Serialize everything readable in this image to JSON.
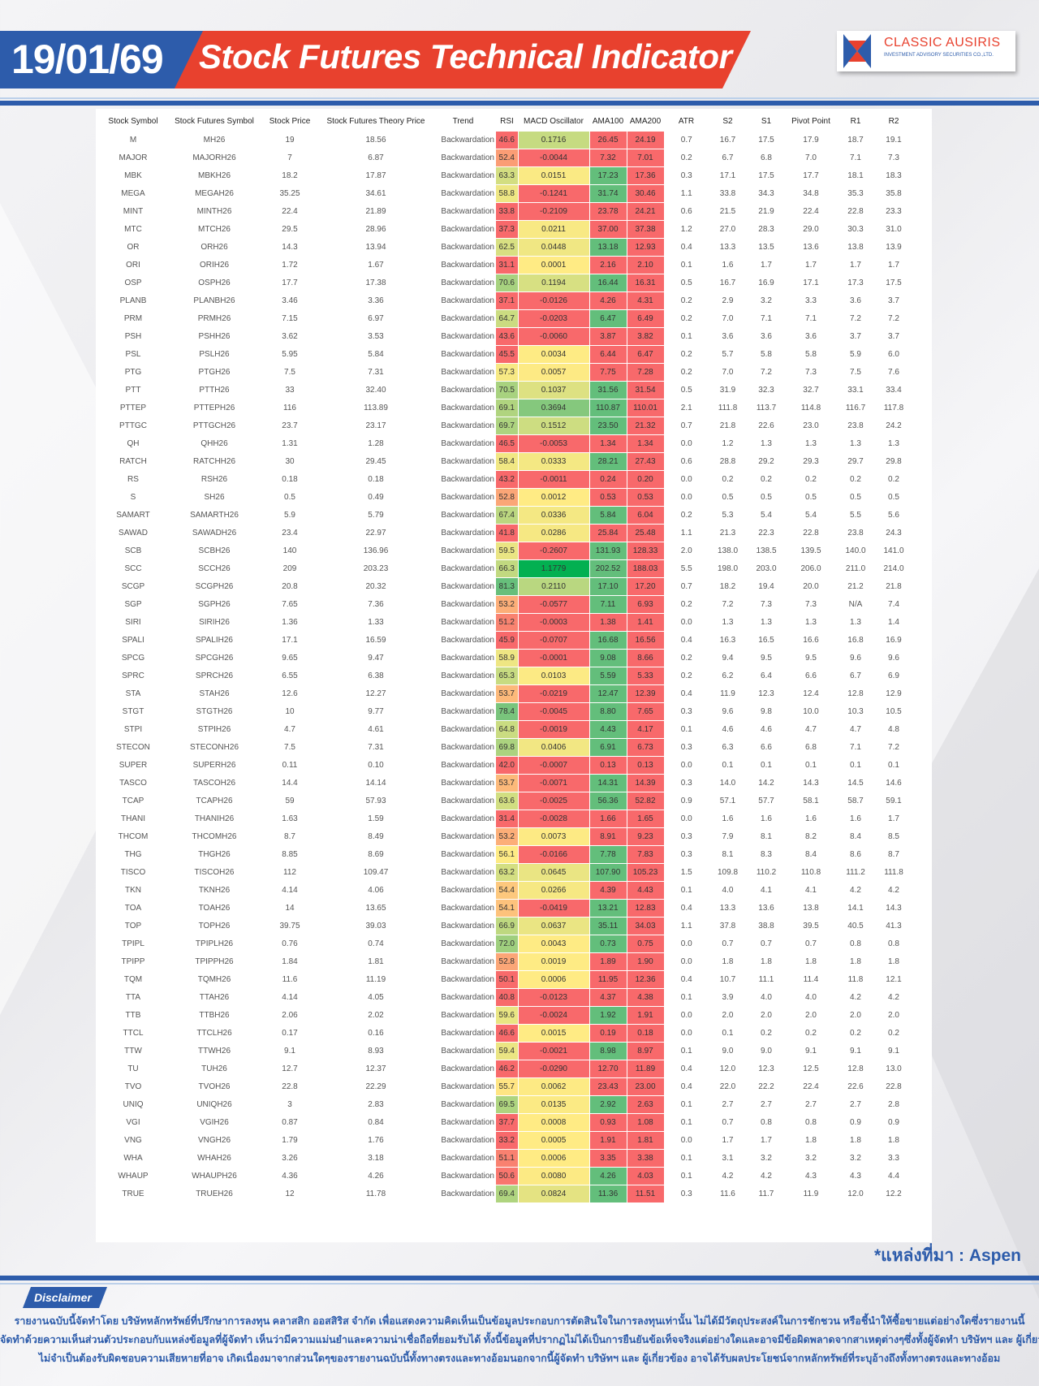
{
  "header": {
    "date": "19/01/69",
    "title": "Stock Futures Technical Indicator",
    "logo_name": "CLASSIC AUSIRIS",
    "logo_sub": "INVESTMENT ADVISORY SECURITIES CO.,LTD.",
    "colors": {
      "blue": "#2d5cab",
      "red": "#e8412e"
    }
  },
  "table": {
    "columns": [
      "Stock Symbol",
      "Stock Futures Symbol",
      "Stock Price",
      "Stock Futures Theory Price",
      "Trend",
      "RSI",
      "MACD Oscillator",
      "AMA100",
      "AMA200",
      "ATR",
      "S2",
      "S1",
      "Pivot Point",
      "R1",
      "R2"
    ],
    "rows": [
      [
        "M",
        "MH26",
        "19",
        "18.56",
        "Backwardation",
        "46.6",
        "0.1716",
        "26.45",
        "24.19",
        "0.7",
        "16.7",
        "17.5",
        "17.9",
        "18.7",
        "19.1"
      ],
      [
        "MAJOR",
        "MAJORH26",
        "7",
        "6.87",
        "Backwardation",
        "52.4",
        "-0.0044",
        "7.32",
        "7.01",
        "0.2",
        "6.7",
        "6.8",
        "7.0",
        "7.1",
        "7.3"
      ],
      [
        "MBK",
        "MBKH26",
        "18.2",
        "17.87",
        "Backwardation",
        "63.3",
        "0.0151",
        "17.23",
        "17.36",
        "0.3",
        "17.1",
        "17.5",
        "17.7",
        "18.1",
        "18.3"
      ],
      [
        "MEGA",
        "MEGAH26",
        "35.25",
        "34.61",
        "Backwardation",
        "58.8",
        "-0.1241",
        "31.74",
        "30.46",
        "1.1",
        "33.8",
        "34.3",
        "34.8",
        "35.3",
        "35.8"
      ],
      [
        "MINT",
        "MINTH26",
        "22.4",
        "21.89",
        "Backwardation",
        "33.8",
        "-0.2109",
        "23.78",
        "24.21",
        "0.6",
        "21.5",
        "21.9",
        "22.4",
        "22.8",
        "23.3"
      ],
      [
        "MTC",
        "MTCH26",
        "29.5",
        "28.96",
        "Backwardation",
        "37.3",
        "0.0211",
        "37.00",
        "37.38",
        "1.2",
        "27.0",
        "28.3",
        "29.0",
        "30.3",
        "31.0"
      ],
      [
        "OR",
        "ORH26",
        "14.3",
        "13.94",
        "Backwardation",
        "62.5",
        "0.0448",
        "13.18",
        "12.93",
        "0.4",
        "13.3",
        "13.5",
        "13.6",
        "13.8",
        "13.9"
      ],
      [
        "ORI",
        "ORIH26",
        "1.72",
        "1.67",
        "Backwardation",
        "31.1",
        "0.0001",
        "2.16",
        "2.10",
        "0.1",
        "1.6",
        "1.7",
        "1.7",
        "1.7",
        "1.7"
      ],
      [
        "OSP",
        "OSPH26",
        "17.7",
        "17.38",
        "Backwardation",
        "70.6",
        "0.1194",
        "16.44",
        "16.31",
        "0.5",
        "16.7",
        "16.9",
        "17.1",
        "17.3",
        "17.5"
      ],
      [
        "PLANB",
        "PLANBH26",
        "3.46",
        "3.36",
        "Backwardation",
        "37.1",
        "-0.0126",
        "4.26",
        "4.31",
        "0.2",
        "2.9",
        "3.2",
        "3.3",
        "3.6",
        "3.7"
      ],
      [
        "PRM",
        "PRMH26",
        "7.15",
        "6.97",
        "Backwardation",
        "64.7",
        "-0.0203",
        "6.47",
        "6.49",
        "0.2",
        "7.0",
        "7.1",
        "7.1",
        "7.2",
        "7.2"
      ],
      [
        "PSH",
        "PSHH26",
        "3.62",
        "3.53",
        "Backwardation",
        "43.6",
        "-0.0060",
        "3.87",
        "3.82",
        "0.1",
        "3.6",
        "3.6",
        "3.6",
        "3.7",
        "3.7"
      ],
      [
        "PSL",
        "PSLH26",
        "5.95",
        "5.84",
        "Backwardation",
        "45.5",
        "0.0034",
        "6.44",
        "6.47",
        "0.2",
        "5.7",
        "5.8",
        "5.8",
        "5.9",
        "6.0"
      ],
      [
        "PTG",
        "PTGH26",
        "7.5",
        "7.31",
        "Backwardation",
        "57.3",
        "0.0057",
        "7.75",
        "7.28",
        "0.2",
        "7.0",
        "7.2",
        "7.3",
        "7.5",
        "7.6"
      ],
      [
        "PTT",
        "PTTH26",
        "33",
        "32.40",
        "Backwardation",
        "70.5",
        "0.1037",
        "31.56",
        "31.54",
        "0.5",
        "31.9",
        "32.3",
        "32.7",
        "33.1",
        "33.4"
      ],
      [
        "PTTEP",
        "PTTEPH26",
        "116",
        "113.89",
        "Backwardation",
        "69.1",
        "0.3694",
        "110.87",
        "110.01",
        "2.1",
        "111.8",
        "113.7",
        "114.8",
        "116.7",
        "117.8"
      ],
      [
        "PTTGC",
        "PTTGCH26",
        "23.7",
        "23.17",
        "Backwardation",
        "69.7",
        "0.1512",
        "23.50",
        "21.32",
        "0.7",
        "21.8",
        "22.6",
        "23.0",
        "23.8",
        "24.2"
      ],
      [
        "QH",
        "QHH26",
        "1.31",
        "1.28",
        "Backwardation",
        "46.5",
        "-0.0053",
        "1.34",
        "1.34",
        "0.0",
        "1.2",
        "1.3",
        "1.3",
        "1.3",
        "1.3"
      ],
      [
        "RATCH",
        "RATCHH26",
        "30",
        "29.45",
        "Backwardation",
        "58.4",
        "0.0333",
        "28.21",
        "27.43",
        "0.6",
        "28.8",
        "29.2",
        "29.3",
        "29.7",
        "29.8"
      ],
      [
        "RS",
        "RSH26",
        "0.18",
        "0.18",
        "Backwardation",
        "43.2",
        "-0.0011",
        "0.24",
        "0.20",
        "0.0",
        "0.2",
        "0.2",
        "0.2",
        "0.2",
        "0.2"
      ],
      [
        "S",
        "SH26",
        "0.5",
        "0.49",
        "Backwardation",
        "52.8",
        "0.0012",
        "0.53",
        "0.53",
        "0.0",
        "0.5",
        "0.5",
        "0.5",
        "0.5",
        "0.5"
      ],
      [
        "SAMART",
        "SAMARTH26",
        "5.9",
        "5.79",
        "Backwardation",
        "67.4",
        "0.0336",
        "5.84",
        "6.04",
        "0.2",
        "5.3",
        "5.4",
        "5.4",
        "5.5",
        "5.6"
      ],
      [
        "SAWAD",
        "SAWADH26",
        "23.4",
        "22.97",
        "Backwardation",
        "41.8",
        "0.0286",
        "25.84",
        "25.48",
        "1.1",
        "21.3",
        "22.3",
        "22.8",
        "23.8",
        "24.3"
      ],
      [
        "SCB",
        "SCBH26",
        "140",
        "136.96",
        "Backwardation",
        "59.5",
        "-0.2607",
        "131.93",
        "128.33",
        "2.0",
        "138.0",
        "138.5",
        "139.5",
        "140.0",
        "141.0"
      ],
      [
        "SCC",
        "SCCH26",
        "209",
        "203.23",
        "Backwardation",
        "66.3",
        "1.1779",
        "202.52",
        "188.03",
        "5.5",
        "198.0",
        "203.0",
        "206.0",
        "211.0",
        "214.0"
      ],
      [
        "SCGP",
        "SCGPH26",
        "20.8",
        "20.32",
        "Backwardation",
        "81.3",
        "0.2110",
        "17.10",
        "17.20",
        "0.7",
        "18.2",
        "19.4",
        "20.0",
        "21.2",
        "21.8"
      ],
      [
        "SGP",
        "SGPH26",
        "7.65",
        "7.36",
        "Backwardation",
        "53.2",
        "-0.0577",
        "7.11",
        "6.93",
        "0.2",
        "7.2",
        "7.3",
        "7.3",
        "N/A",
        "7.4"
      ],
      [
        "SIRI",
        "SIRIH26",
        "1.36",
        "1.33",
        "Backwardation",
        "51.2",
        "-0.0003",
        "1.38",
        "1.41",
        "0.0",
        "1.3",
        "1.3",
        "1.3",
        "1.3",
        "1.4"
      ],
      [
        "SPALI",
        "SPALIH26",
        "17.1",
        "16.59",
        "Backwardation",
        "45.9",
        "-0.0707",
        "16.68",
        "16.56",
        "0.4",
        "16.3",
        "16.5",
        "16.6",
        "16.8",
        "16.9"
      ],
      [
        "SPCG",
        "SPCGH26",
        "9.65",
        "9.47",
        "Backwardation",
        "58.9",
        "-0.0001",
        "9.08",
        "8.66",
        "0.2",
        "9.4",
        "9.5",
        "9.5",
        "9.6",
        "9.6"
      ],
      [
        "SPRC",
        "SPRCH26",
        "6.55",
        "6.38",
        "Backwardation",
        "65.3",
        "0.0103",
        "5.59",
        "5.33",
        "0.2",
        "6.2",
        "6.4",
        "6.6",
        "6.7",
        "6.9"
      ],
      [
        "STA",
        "STAH26",
        "12.6",
        "12.27",
        "Backwardation",
        "53.7",
        "-0.0219",
        "12.47",
        "12.39",
        "0.4",
        "11.9",
        "12.3",
        "12.4",
        "12.8",
        "12.9"
      ],
      [
        "STGT",
        "STGTH26",
        "10",
        "9.77",
        "Backwardation",
        "78.4",
        "-0.0045",
        "8.80",
        "7.65",
        "0.3",
        "9.6",
        "9.8",
        "10.0",
        "10.3",
        "10.5"
      ],
      [
        "STPI",
        "STPIH26",
        "4.7",
        "4.61",
        "Backwardation",
        "64.8",
        "-0.0019",
        "4.43",
        "4.17",
        "0.1",
        "4.6",
        "4.6",
        "4.7",
        "4.7",
        "4.8"
      ],
      [
        "STECON",
        "STECONH26",
        "7.5",
        "7.31",
        "Backwardation",
        "69.8",
        "0.0406",
        "6.91",
        "6.73",
        "0.3",
        "6.3",
        "6.6",
        "6.8",
        "7.1",
        "7.2"
      ],
      [
        "SUPER",
        "SUPERH26",
        "0.11",
        "0.10",
        "Backwardation",
        "42.0",
        "-0.0007",
        "0.13",
        "0.13",
        "0.0",
        "0.1",
        "0.1",
        "0.1",
        "0.1",
        "0.1"
      ],
      [
        "TASCO",
        "TASCOH26",
        "14.4",
        "14.14",
        "Backwardation",
        "53.7",
        "-0.0071",
        "14.31",
        "14.39",
        "0.3",
        "14.0",
        "14.2",
        "14.3",
        "14.5",
        "14.6"
      ],
      [
        "TCAP",
        "TCAPH26",
        "59",
        "57.93",
        "Backwardation",
        "63.6",
        "-0.0025",
        "56.36",
        "52.82",
        "0.9",
        "57.1",
        "57.7",
        "58.1",
        "58.7",
        "59.1"
      ],
      [
        "THANI",
        "THANIH26",
        "1.63",
        "1.59",
        "Backwardation",
        "31.4",
        "-0.0028",
        "1.66",
        "1.65",
        "0.0",
        "1.6",
        "1.6",
        "1.6",
        "1.6",
        "1.7"
      ],
      [
        "THCOM",
        "THCOMH26",
        "8.7",
        "8.49",
        "Backwardation",
        "53.2",
        "0.0073",
        "8.91",
        "9.23",
        "0.3",
        "7.9",
        "8.1",
        "8.2",
        "8.4",
        "8.5"
      ],
      [
        "THG",
        "THGH26",
        "8.85",
        "8.69",
        "Backwardation",
        "56.1",
        "-0.0166",
        "7.78",
        "7.83",
        "0.3",
        "8.1",
        "8.3",
        "8.4",
        "8.6",
        "8.7"
      ],
      [
        "TISCO",
        "TISCOH26",
        "112",
        "109.47",
        "Backwardation",
        "63.2",
        "0.0645",
        "107.90",
        "105.23",
        "1.5",
        "109.8",
        "110.2",
        "110.8",
        "111.2",
        "111.8"
      ],
      [
        "TKN",
        "TKNH26",
        "4.14",
        "4.06",
        "Backwardation",
        "54.4",
        "0.0266",
        "4.39",
        "4.43",
        "0.1",
        "4.0",
        "4.1",
        "4.1",
        "4.2",
        "4.2"
      ],
      [
        "TOA",
        "TOAH26",
        "14",
        "13.65",
        "Backwardation",
        "54.1",
        "-0.0419",
        "13.21",
        "12.83",
        "0.4",
        "13.3",
        "13.6",
        "13.8",
        "14.1",
        "14.3"
      ],
      [
        "TOP",
        "TOPH26",
        "39.75",
        "39.03",
        "Backwardation",
        "66.9",
        "0.0637",
        "35.11",
        "34.03",
        "1.1",
        "37.8",
        "38.8",
        "39.5",
        "40.5",
        "41.3"
      ],
      [
        "TPIPL",
        "TPIPLH26",
        "0.76",
        "0.74",
        "Backwardation",
        "72.0",
        "0.0043",
        "0.73",
        "0.75",
        "0.0",
        "0.7",
        "0.7",
        "0.7",
        "0.8",
        "0.8"
      ],
      [
        "TPIPP",
        "TPIPPH26",
        "1.84",
        "1.81",
        "Backwardation",
        "52.8",
        "0.0019",
        "1.89",
        "1.90",
        "0.0",
        "1.8",
        "1.8",
        "1.8",
        "1.8",
        "1.8"
      ],
      [
        "TQM",
        "TQMH26",
        "11.6",
        "11.19",
        "Backwardation",
        "50.1",
        "0.0006",
        "11.95",
        "12.36",
        "0.4",
        "10.7",
        "11.1",
        "11.4",
        "11.8",
        "12.1"
      ],
      [
        "TTA",
        "TTAH26",
        "4.14",
        "4.05",
        "Backwardation",
        "40.8",
        "-0.0123",
        "4.37",
        "4.38",
        "0.1",
        "3.9",
        "4.0",
        "4.0",
        "4.2",
        "4.2"
      ],
      [
        "TTB",
        "TTBH26",
        "2.06",
        "2.02",
        "Backwardation",
        "59.6",
        "-0.0024",
        "1.92",
        "1.91",
        "0.0",
        "2.0",
        "2.0",
        "2.0",
        "2.0",
        "2.0"
      ],
      [
        "TTCL",
        "TTCLH26",
        "0.17",
        "0.16",
        "Backwardation",
        "46.6",
        "0.0015",
        "0.19",
        "0.18",
        "0.0",
        "0.1",
        "0.2",
        "0.2",
        "0.2",
        "0.2"
      ],
      [
        "TTW",
        "TTWH26",
        "9.1",
        "8.93",
        "Backwardation",
        "59.4",
        "-0.0021",
        "8.98",
        "8.97",
        "0.1",
        "9.0",
        "9.0",
        "9.1",
        "9.1",
        "9.1"
      ],
      [
        "TU",
        "TUH26",
        "12.7",
        "12.37",
        "Backwardation",
        "46.2",
        "-0.0290",
        "12.70",
        "11.89",
        "0.4",
        "12.0",
        "12.3",
        "12.5",
        "12.8",
        "13.0"
      ],
      [
        "TVO",
        "TVOH26",
        "22.8",
        "22.29",
        "Backwardation",
        "55.7",
        "0.0062",
        "23.43",
        "23.00",
        "0.4",
        "22.0",
        "22.2",
        "22.4",
        "22.6",
        "22.8"
      ],
      [
        "UNIQ",
        "UNIQH26",
        "3",
        "2.83",
        "Backwardation",
        "69.5",
        "0.0135",
        "2.92",
        "2.63",
        "0.1",
        "2.7",
        "2.7",
        "2.7",
        "2.7",
        "2.8"
      ],
      [
        "VGI",
        "VGIH26",
        "0.87",
        "0.84",
        "Backwardation",
        "37.7",
        "0.0008",
        "0.93",
        "1.08",
        "0.1",
        "0.7",
        "0.8",
        "0.8",
        "0.9",
        "0.9"
      ],
      [
        "VNG",
        "VNGH26",
        "1.79",
        "1.76",
        "Backwardation",
        "33.2",
        "0.0005",
        "1.91",
        "1.81",
        "0.0",
        "1.7",
        "1.7",
        "1.8",
        "1.8",
        "1.8"
      ],
      [
        "WHA",
        "WHAH26",
        "3.26",
        "3.18",
        "Backwardation",
        "51.1",
        "0.0006",
        "3.35",
        "3.38",
        "0.1",
        "3.1",
        "3.2",
        "3.2",
        "3.2",
        "3.3"
      ],
      [
        "WHAUP",
        "WHAUPH26",
        "4.36",
        "4.26",
        "Backwardation",
        "50.6",
        "0.0080",
        "4.26",
        "4.03",
        "0.1",
        "4.2",
        "4.2",
        "4.3",
        "4.3",
        "4.4"
      ],
      [
        "TRUE",
        "TRUEH26",
        "12",
        "11.78",
        "Backwardation",
        "69.4",
        "0.0824",
        "11.36",
        "11.51",
        "0.3",
        "11.6",
        "11.7",
        "11.9",
        "12.0",
        "12.2"
      ]
    ],
    "colors": {
      "red": "#f8696b",
      "yellow": "#ffeb84",
      "green": "#63be7b",
      "strong_green": "#00b050"
    }
  },
  "footer": {
    "source": "*แหล่งที่มา : Aspen",
    "disclaimer_label": "Disclaimer",
    "disclaimer_lines": [
      "รายงานฉบับนี้จัดทำโดย บริษัทหลักทรัพย์ที่ปรึกษาการลงทุน คลาสสิก ออสสิริส จำกัด  เพื่อแสดงความคิดเห็นเป็นข้อมูลประกอบการตัดสินใจในการลงทุนเท่านั้น ไม่ได้มีวัตถุประสงค์ในการชักชวน หรือชี้นำให้ซื้อขายแต่อย่างใดซึ่งรายงานนี้",
      "จัดทำด้วยความเห็นส่วนตัวประกอบกับแหล่งข้อมูลที่ผู้จัดทำ เห็นว่ามีความแม่นยำและความน่าเชื่อถือที่ยอมรับได้ ทั้งนี้ข้อมูลที่ปรากฏไม่ได้เป็นการยืนยันข้อเท็จจริงแต่อย่างใดและอาจมีข้อผิดพลาดจากสาเหตุต่างๆซึ่งทั้งผู้จัดทำ  บริษัทฯ  และ  ผู้เกี่ยวข้อง",
      "ไม่จำเป็นต้องรับผิดชอบความเสียหายที่อาจ เกิดเนื่องมาจากส่วนใดๆของรายงานฉบับนี้ทั้งทางตรงและทางอ้อมนอกจากนี้ผู้จัดทำ บริษัทฯ และ ผู้เกี่ยวข้อง  อาจได้รับผลประโยชน์จากหลักทรัพย์ที่ระบุอ้างถึงทั้งทางตรงและทางอ้อม"
    ]
  }
}
